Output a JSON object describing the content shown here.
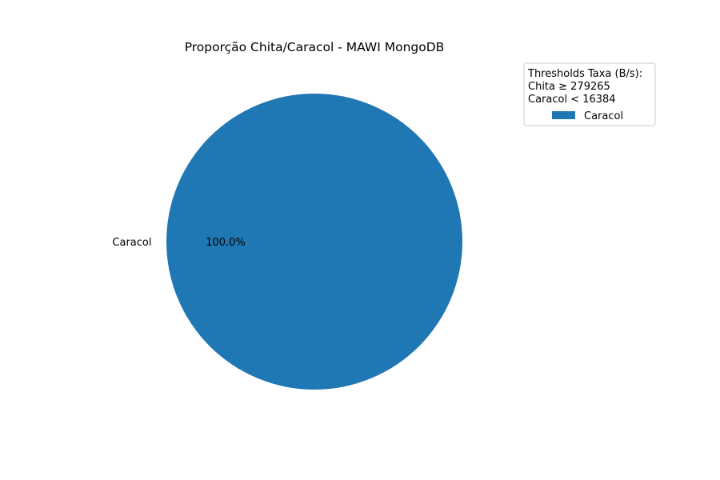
{
  "chart_data": {
    "type": "pie",
    "title": "Proporção Chita/Caracol - MAWI MongoDB",
    "slices": [
      {
        "label": "Caracol",
        "value": 100.0,
        "pct_label": "100.0%",
        "color": "#1f77b4"
      }
    ],
    "legend": {
      "placement": "top-right",
      "title_lines": [
        "Thresholds Taxa (B/s):",
        "Chita ≥ 279265",
        "Caracol < 16384"
      ],
      "entries": [
        {
          "label": "Caracol",
          "color": "#1f77b4"
        }
      ]
    }
  }
}
